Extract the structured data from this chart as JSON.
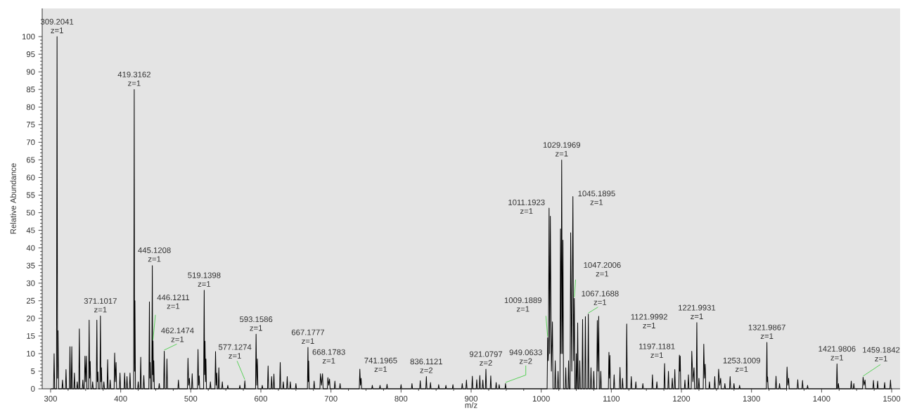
{
  "chart_data": {
    "type": "line",
    "xlabel": "m/z",
    "ylabel": "Relative Abundance",
    "color": "#000000",
    "x": [
      301,
      304.2,
      305,
      305.8,
      308.4,
      309.2041,
      309.9,
      310.6,
      311.4,
      316.2,
      317,
      317.8,
      321.2,
      322,
      322.8,
      326.8,
      327.6,
      328.4,
      329.4,
      330.2,
      331,
      333.2,
      334,
      334.8,
      337.2,
      338,
      338.8,
      340.2,
      341,
      341.8,
      345.2,
      346,
      346.8,
      348.2,
      349,
      350,
      351,
      351.8,
      354.2,
      355,
      355.7,
      356.5,
      357.3,
      359.2,
      360,
      360.8,
      365.2,
      366,
      366.7,
      367.5,
      368.3,
      370.3,
      371.1017,
      371.8,
      372.5,
      373.3,
      375.2,
      376,
      376.8,
      380.6,
      381.4,
      382.2,
      384.2,
      385,
      385.8,
      390.6,
      391.4,
      392.4,
      393.4,
      394.2,
      398.2,
      399,
      399.8,
      404.8,
      405.6,
      406.4,
      408.2,
      409,
      409.8,
      412.5,
      413.3,
      414.1,
      418.5,
      419.3162,
      419.8,
      420.3,
      421.1,
      424.2,
      425,
      425.8,
      427.8,
      428.6,
      429.4,
      432.2,
      433,
      433.8,
      440.2,
      441,
      441.6,
      442.2,
      443,
      444.3,
      445.1208,
      445.6,
      446.1211,
      446.7,
      447.2,
      448,
      454.2,
      455,
      455.8,
      461.3,
      462.1474,
      462.9,
      465.2,
      466,
      466.8,
      481.6,
      482.4,
      483.2,
      495.2,
      496,
      497,
      498,
      498.8,
      501.2,
      502,
      502.8,
      509.5,
      510.3,
      511.2,
      512,
      512.8,
      518.3,
      519.1398,
      519.7,
      520.3,
      521,
      521.6,
      522.4,
      527.2,
      528,
      528.8,
      534.5,
      535.3,
      536.2,
      537,
      537.8,
      539.2,
      540,
      540.8,
      544.2,
      545,
      545.8,
      552,
      552.8,
      553.6,
      569.2,
      570,
      570.8,
      576.3,
      577.1274,
      577.9,
      592.4,
      593.1586,
      594.1,
      595,
      595.8,
      601.2,
      602,
      602.8,
      609.5,
      610.3,
      611.1,
      614.5,
      615.3,
      616.1,
      617.8,
      618.6,
      619.4,
      626.8,
      627.6,
      628.4,
      631.2,
      632,
      632.8,
      636.8,
      637.6,
      638.4,
      641.2,
      642,
      642.8,
      649.2,
      650,
      650.8,
      666.4,
      667.1777,
      667.7,
      668.1783,
      669,
      675.2,
      676,
      676.8,
      684.2,
      685,
      686.5,
      688,
      688.8,
      694.8,
      695.6,
      696.8,
      698,
      698.8,
      704.8,
      705.6,
      706.4,
      712.2,
      713,
      713.8,
      740.4,
      741.1965,
      742.1,
      743,
      743.8,
      758.2,
      759,
      759.8,
      769.2,
      770,
      770.8,
      779.2,
      780,
      780.8,
      799.2,
      800,
      800.8,
      814.8,
      815.6,
      816.4,
      826.6,
      827.4,
      828.2,
      835.3,
      836.1121,
      836.9,
      841.2,
      842,
      842.8,
      852.9,
      853.7,
      854.5,
      863.2,
      864,
      864.8,
      873.2,
      874,
      874.8,
      886.5,
      887.3,
      888.1,
      892.5,
      893.3,
      894.1,
      900.9,
      901.7,
      902.5,
      907.2,
      908,
      908.8,
      911.6,
      912.4,
      913.2,
      915.9,
      916.7,
      917.5,
      920.3,
      921.0797,
      921.9,
      927.2,
      928,
      928.8,
      934.9,
      935.7,
      936.5,
      939.2,
      940,
      940.8,
      948.3,
      949.0633,
      949.9,
      1008.4,
      1009.1889,
      1010.2,
      1011.1923,
      1012.1,
      1013,
      1014.5,
      1016,
      1016.8,
      1019.2,
      1020,
      1020.8,
      1023.2,
      1024,
      1024.8,
      1026.7,
      1027.5,
      1028.3,
      1029.1969,
      1030.1,
      1031,
      1031.8,
      1034.2,
      1035,
      1035.8,
      1038.2,
      1039,
      1039.8,
      1041.2,
      1042,
      1043.6,
      1045.1895,
      1046.2,
      1047.2006,
      1048,
      1049.2,
      1050,
      1050.8,
      1051.2,
      1052,
      1052.8,
      1054.2,
      1055,
      1055.8,
      1058.2,
      1059,
      1059.8,
      1062.2,
      1063,
      1063.8,
      1066.4,
      1067.1688,
      1068,
      1070.2,
      1071,
      1071.8,
      1074.2,
      1075,
      1075.8,
      1079.2,
      1080,
      1081,
      1082,
      1082.8,
      1084.2,
      1085,
      1085.8,
      1095.8,
      1096.6,
      1097.3,
      1098,
      1098.8,
      1103.2,
      1104,
      1104.8,
      1111.6,
      1112.4,
      1113.2,
      1115.2,
      1116,
      1116.8,
      1121.2,
      1121.9992,
      1122.8,
      1127.7,
      1128.5,
      1129.3,
      1134.2,
      1135,
      1135.8,
      1144.2,
      1145,
      1145.8,
      1157.9,
      1158.7,
      1159.5,
      1164.2,
      1165,
      1165.8,
      1175.2,
      1176,
      1176.8,
      1180.7,
      1181.5,
      1182.3,
      1186.2,
      1187,
      1187.8,
      1189.8,
      1190.6,
      1191.4,
      1196.3,
      1197.1181,
      1197.7,
      1198.3,
      1199.1,
      1204.2,
      1205,
      1205.8,
      1209.2,
      1210,
      1210.8,
      1214,
      1214.8,
      1216.4,
      1218,
      1218.8,
      1221.2,
      1221.9931,
      1222.8,
      1224.2,
      1225,
      1225.8,
      1231.1,
      1231.9,
      1233,
      1234,
      1234.8,
      1239.2,
      1240,
      1240.8,
      1246.8,
      1247.6,
      1248.4,
      1252.3,
      1253.1009,
      1254.6,
      1256,
      1256.8,
      1261.2,
      1262,
      1262.8,
      1268.7,
      1269.5,
      1270.3,
      1274.2,
      1275,
      1275.8,
      1282.2,
      1283,
      1283.8,
      1321.2,
      1321.9867,
      1322.5,
      1323,
      1323.8,
      1334.2,
      1335,
      1335.8,
      1339.2,
      1340,
      1340.8,
      1349.9,
      1350.7,
      1351.8,
      1353,
      1353.8,
      1365.2,
      1366,
      1366.8,
      1372,
      1372.8,
      1373.6,
      1379.2,
      1380,
      1380.8,
      1421.2,
      1421.9806,
      1422.8,
      1423.2,
      1424,
      1424.8,
      1441.5,
      1442.3,
      1443.1,
      1445.2,
      1446,
      1446.8,
      1458.4,
      1459.1842,
      1460.6,
      1462,
      1462.8,
      1473.2,
      1474,
      1474.8,
      1479.2,
      1480,
      1480.8,
      1489.2,
      1490,
      1490.8,
      1497.5,
      1498.3,
      1499.1,
      1500
    ],
    "values": [
      0,
      0,
      10,
      0,
      0,
      100,
      3,
      16.5,
      0,
      0,
      2.5,
      0,
      0,
      5.5,
      0,
      0,
      12,
      0,
      0,
      12,
      0,
      0,
      4.5,
      0,
      0,
      2,
      0,
      0,
      17,
      0,
      0,
      2.5,
      0,
      0,
      9.3,
      2,
      9.3,
      0,
      0,
      19.5,
      3,
      7.8,
      0,
      0,
      2,
      0,
      0,
      19.5,
      2,
      4.8,
      0,
      0,
      20.7,
      2,
      6,
      0,
      0,
      2,
      0,
      0,
      8.3,
      0,
      0,
      2.5,
      0,
      0,
      10.2,
      2,
      7.5,
      0,
      0,
      4.5,
      0,
      0,
      4.5,
      0,
      0,
      3.5,
      0,
      0,
      4.5,
      0,
      0,
      85,
      5,
      25,
      0,
      0,
      2,
      0,
      0,
      9,
      0,
      0,
      3.8,
      0,
      0,
      24.7,
      3,
      7.5,
      0,
      0,
      35,
      4,
      13.6,
      2,
      8,
      0,
      0,
      1.5,
      0,
      0,
      10.7,
      0,
      0,
      8.5,
      0,
      0,
      2.5,
      0,
      0,
      8.7,
      1,
      3,
      0,
      0,
      4.3,
      0,
      0,
      11.2,
      1,
      3.7,
      0,
      0,
      28,
      4,
      13.5,
      2,
      8.5,
      0,
      0,
      2,
      0,
      0,
      10.6,
      1,
      4.5,
      0,
      0,
      6,
      0,
      0,
      2,
      0,
      0,
      1,
      0,
      0,
      1,
      0,
      0,
      2.3,
      0,
      0,
      15.5,
      1,
      8.5,
      0,
      0,
      1,
      0,
      0,
      6.5,
      0,
      0,
      3.5,
      0,
      0,
      4.2,
      0,
      0,
      7.5,
      0,
      0,
      2,
      0,
      0,
      3.5,
      0,
      0,
      2,
      0,
      0,
      1.5,
      0,
      0,
      11.8,
      2,
      7.9,
      0,
      0,
      2.2,
      0,
      0,
      4.3,
      1,
      4.3,
      0,
      0,
      3.2,
      1,
      2.8,
      0,
      0,
      2.2,
      0,
      0,
      1.5,
      0,
      0,
      5.6,
      1,
      3,
      0,
      0,
      1,
      0,
      0,
      1,
      0,
      0,
      1.3,
      0,
      0,
      1.2,
      0,
      0,
      1.5,
      0,
      0,
      2.3,
      0,
      0,
      3.5,
      0,
      0,
      1.8,
      0,
      0,
      1.2,
      0,
      0,
      1,
      0,
      0,
      1.2,
      0,
      0,
      1.5,
      0,
      0,
      2.5,
      0,
      0,
      3.6,
      0,
      0,
      2.6,
      0,
      0,
      3.8,
      0,
      0,
      2.5,
      0,
      0,
      5.6,
      0,
      0,
      3.7,
      0,
      0,
      1.8,
      0,
      0,
      1.2,
      0,
      0,
      1.5,
      0,
      0,
      14.5,
      8,
      51.3,
      10,
      49,
      5,
      19,
      0,
      0,
      8,
      0,
      0,
      5,
      0,
      0,
      45.4,
      10,
      65,
      10,
      42.2,
      0,
      0,
      6,
      0,
      0,
      8,
      0,
      0,
      44.3,
      5,
      54.6,
      8,
      25.7,
      0,
      0,
      10,
      0,
      0,
      18.7,
      0,
      0,
      8,
      0,
      0,
      19.7,
      0,
      0,
      20.5,
      0,
      0,
      21.2,
      0,
      0,
      6,
      0,
      0,
      5,
      0,
      0,
      19.4,
      5,
      20.6,
      0,
      0,
      5,
      0,
      0,
      10.4,
      3,
      9.5,
      0,
      0,
      4,
      0,
      0,
      6.1,
      0,
      0,
      3,
      0,
      0,
      18.4,
      0,
      0,
      3.5,
      0,
      0,
      2,
      0,
      0,
      1.5,
      0,
      0,
      4,
      0,
      0,
      2,
      0,
      0,
      7.2,
      0,
      0,
      5,
      0,
      0,
      3,
      0,
      0,
      5.5,
      0,
      0,
      9.6,
      5,
      9.3,
      0,
      0,
      2.5,
      0,
      0,
      4,
      0,
      0,
      10.7,
      2,
      6,
      0,
      0,
      18.8,
      0,
      0,
      3,
      0,
      0,
      12.7,
      3,
      7,
      0,
      0,
      2,
      0,
      0,
      3.5,
      0,
      0,
      5.6,
      1,
      3,
      0,
      0,
      1.5,
      0,
      0,
      3.5,
      0,
      0,
      1.5,
      0,
      0,
      1,
      0,
      0,
      13.2,
      2,
      3.4,
      0,
      0,
      3.6,
      0,
      0,
      1.5,
      0,
      0,
      6.2,
      1,
      3,
      0,
      0,
      2.6,
      0,
      0,
      2.4,
      0,
      0,
      1,
      0,
      0,
      7.1,
      0,
      0,
      1.5,
      0,
      0,
      2.2,
      0,
      0,
      1.5,
      0,
      0,
      3.3,
      1,
      2.5,
      0,
      0,
      2.4,
      0,
      0,
      2.2,
      0,
      0,
      1.8,
      0,
      0,
      2.5,
      0,
      0
    ],
    "xlim": [
      288,
      1512
    ],
    "ylim": [
      0,
      108
    ],
    "xticks": [
      300,
      400,
      500,
      600,
      700,
      800,
      900,
      1000,
      1100,
      1200,
      1300,
      1400,
      1500
    ],
    "yticks": [
      0,
      5,
      10,
      15,
      20,
      25,
      30,
      35,
      40,
      45,
      50,
      55,
      60,
      65,
      70,
      75,
      80,
      85,
      90,
      95,
      100
    ],
    "annotations": [
      {
        "text": "309.2041 z=1",
        "x": 309.2041,
        "y": 100
      },
      {
        "text": "371.1017 z=1",
        "x": 371.1017,
        "y": 20.7
      },
      {
        "text": "419.3162 z=1",
        "x": 419.3162,
        "y": 85
      },
      {
        "text": "445.1208 z=1",
        "x": 445.1208,
        "y": 35
      },
      {
        "text": "446.1211 z=1",
        "x": 446.1211,
        "y": 13.6
      },
      {
        "text": "462.1474 z=1",
        "x": 462.1474,
        "y": 10.7
      },
      {
        "text": "519.1398 z=1",
        "x": 519.1398,
        "y": 28
      },
      {
        "text": "577.1274 z=1",
        "x": 577.1274,
        "y": 2.3
      },
      {
        "text": "593.1586 z=1",
        "x": 593.1586,
        "y": 15.5
      },
      {
        "text": "667.1777 z=1",
        "x": 667.1777,
        "y": 11.8
      },
      {
        "text": "668.1783 z=1",
        "x": 668.1783,
        "y": 7.9
      },
      {
        "text": "741.1965 z=1",
        "x": 741.1965,
        "y": 5.6
      },
      {
        "text": "836.1121 z=2",
        "x": 836.1121,
        "y": 3.5
      },
      {
        "text": "921.0797 z=2",
        "x": 921.0797,
        "y": 5.6
      },
      {
        "text": "949.0633 z=2",
        "x": 949.0633,
        "y": 1.5
      },
      {
        "text": "1009.1889 z=1",
        "x": 1009.1889,
        "y": 14.5
      },
      {
        "text": "1011.1923 z=1",
        "x": 1011.1923,
        "y": 51.3
      },
      {
        "text": "1029.1969 z=1",
        "x": 1029.1969,
        "y": 65
      },
      {
        "text": "1045.1895 z=1",
        "x": 1045.1895,
        "y": 54.6
      },
      {
        "text": "1047.2006 z=1",
        "x": 1047.2006,
        "y": 25.7
      },
      {
        "text": "1067.1688 z=1",
        "x": 1067.1688,
        "y": 21.2
      },
      {
        "text": "1121.9992 z=1",
        "x": 1121.9992,
        "y": 18.4
      },
      {
        "text": "1197.1181 z=1",
        "x": 1197.1181,
        "y": 9.6
      },
      {
        "text": "1221.9931 z=1",
        "x": 1221.9931,
        "y": 18.8
      },
      {
        "text": "1253.1009 z=1",
        "x": 1253.1009,
        "y": 5.6
      },
      {
        "text": "1321.9867 z=1",
        "x": 1321.9867,
        "y": 13.2
      },
      {
        "text": "1421.9806 z=1",
        "x": 1421.9806,
        "y": 7.1
      },
      {
        "text": "1459.1842 z=1",
        "x": 1459.1842,
        "y": 3.3
      }
    ]
  }
}
